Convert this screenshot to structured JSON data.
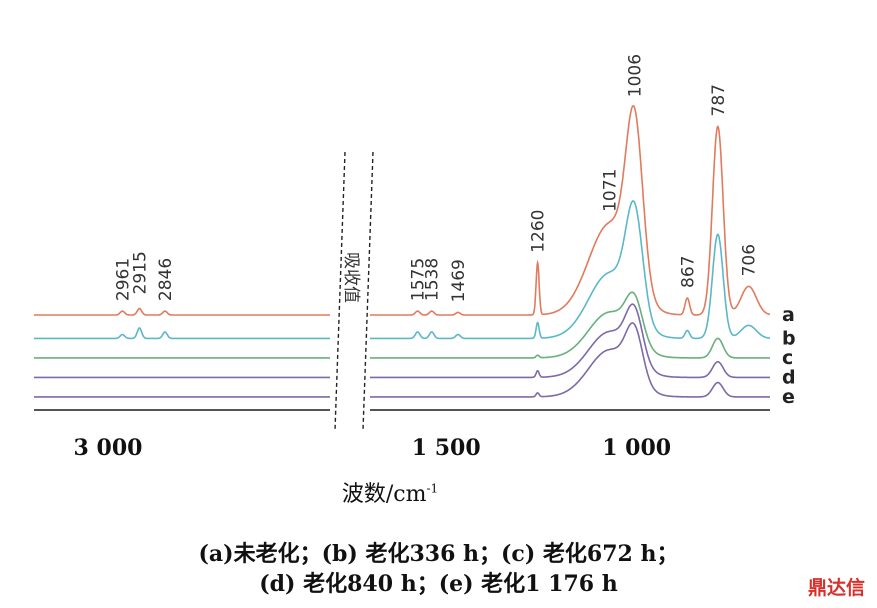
{
  "chart_data": {
    "type": "line",
    "title": "",
    "xlabel": "波数/cm",
    "xlabel_sup": "-1",
    "ylabel": "",
    "y_annotation": "吸收值",
    "x_reversed": true,
    "axis_break": [
      2400,
      1700
    ],
    "xlim_left": [
      3200,
      2400
    ],
    "xlim_right": [
      1700,
      650
    ],
    "x_ticks": [
      {
        "value": 3000,
        "label": "3 000"
      },
      {
        "value": 1500,
        "label": "1 500"
      },
      {
        "value": 1000,
        "label": "1 000"
      }
    ],
    "series": [
      {
        "name": "a",
        "color": "#e07b5e",
        "offset": 0.0,
        "peaks": [
          [
            2961,
            0.03
          ],
          [
            2915,
            0.05
          ],
          [
            2846,
            0.03
          ],
          [
            1575,
            0.03
          ],
          [
            1538,
            0.03
          ],
          [
            1469,
            0.02
          ],
          [
            1260,
            0.4
          ],
          [
            1071,
            0.7
          ],
          [
            1006,
            1.25
          ],
          [
            867,
            0.13
          ],
          [
            787,
            1.45
          ],
          [
            706,
            0.22
          ]
        ]
      },
      {
        "name": "b",
        "color": "#5bb8c8",
        "offset": -0.18,
        "peaks": [
          [
            2961,
            0.03
          ],
          [
            2915,
            0.08
          ],
          [
            2846,
            0.05
          ],
          [
            1575,
            0.05
          ],
          [
            1538,
            0.05
          ],
          [
            1469,
            0.03
          ],
          [
            1260,
            0.12
          ],
          [
            1071,
            0.5
          ],
          [
            1006,
            0.8
          ],
          [
            867,
            0.06
          ],
          [
            787,
            0.8
          ],
          [
            706,
            0.1
          ]
        ]
      },
      {
        "name": "c",
        "color": "#6aaf7e",
        "offset": -0.33,
        "peaks": [
          [
            1260,
            0.02
          ],
          [
            1071,
            0.35
          ],
          [
            1006,
            0.32
          ],
          [
            787,
            0.15
          ]
        ]
      },
      {
        "name": "d",
        "color": "#7d6aa8",
        "offset": -0.48,
        "peaks": [
          [
            1260,
            0.05
          ],
          [
            1071,
            0.35
          ],
          [
            1006,
            0.38
          ],
          [
            787,
            0.12
          ]
        ]
      },
      {
        "name": "e",
        "color": "#7d6aa8",
        "offset": -0.63,
        "peaks": [
          [
            1260,
            0.03
          ],
          [
            1071,
            0.36
          ],
          [
            1006,
            0.38
          ],
          [
            787,
            0.11
          ]
        ]
      }
    ],
    "peak_labels": [
      "2961",
      "2915",
      "2846",
      "1575",
      "1538",
      "1469",
      "1260",
      "1071",
      "1006",
      "867",
      "787",
      "706"
    ]
  },
  "caption": {
    "line1": "(a)未老化；(b) 老化336 h；(c) 老化672 h；",
    "line2": "(d) 老化840 h；(e) 老化1 176 h"
  },
  "watermark": "鼎达信"
}
